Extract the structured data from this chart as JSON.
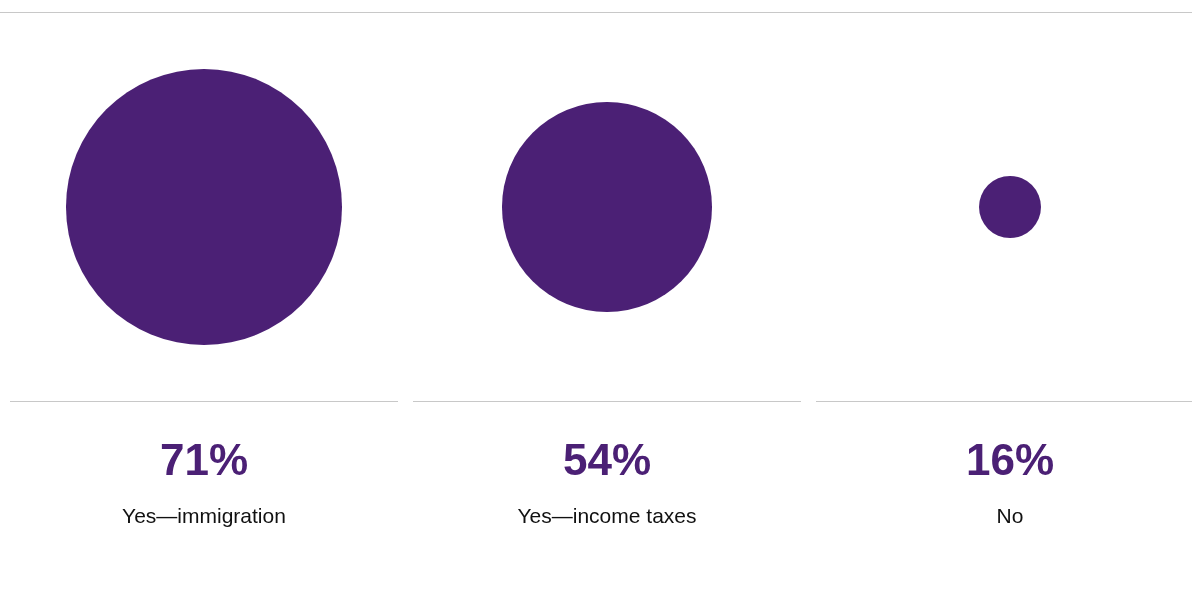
{
  "chart_data": {
    "type": "other",
    "categories": [
      "Yes—immigration",
      "Yes—income taxes",
      "No"
    ],
    "values": [
      71,
      54,
      16
    ],
    "value_labels": [
      "71%",
      "54%",
      "16%"
    ],
    "color": "#4b2075"
  }
}
